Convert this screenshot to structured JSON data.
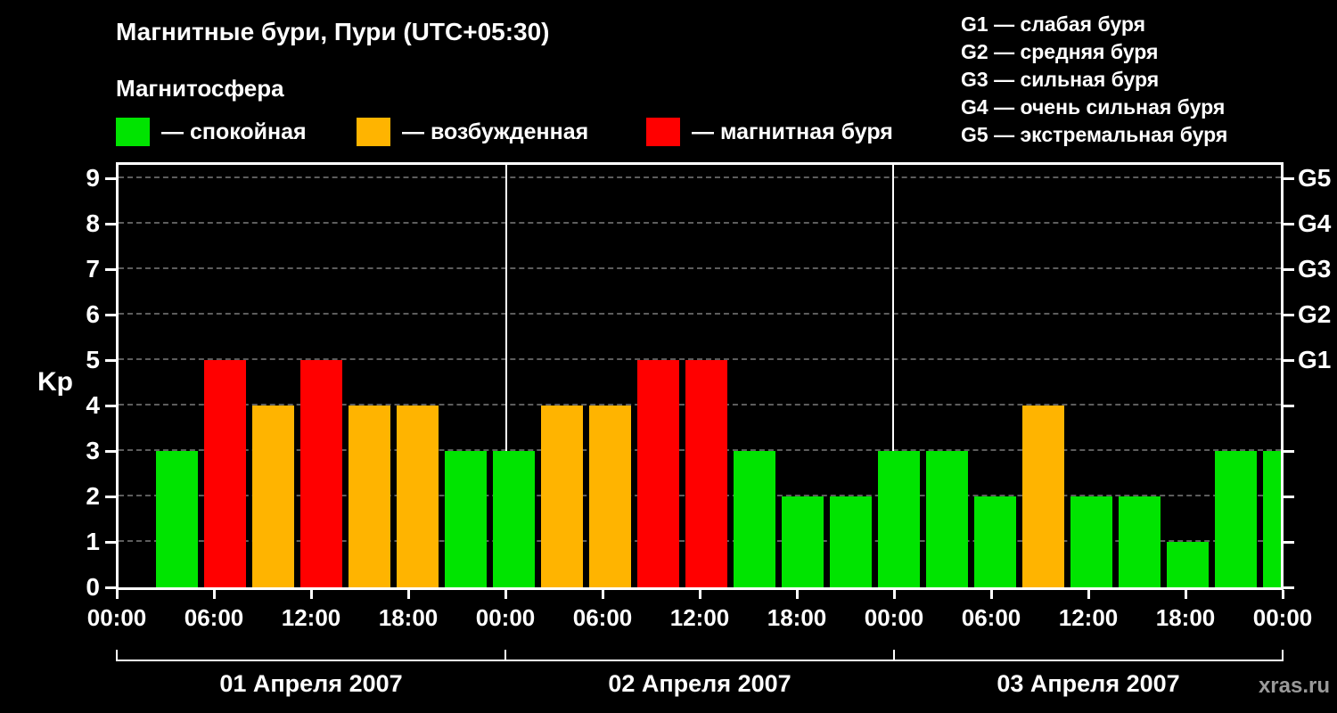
{
  "title": "Магнитные бури, Пури (UTC+05:30)",
  "subtitle": "Магнитосфера",
  "legend": [
    {
      "key": "quiet",
      "label": "— спокойная",
      "color": "#00e400"
    },
    {
      "key": "active",
      "label": "— возбужденная",
      "color": "#ffb400"
    },
    {
      "key": "storm",
      "label": "— магнитная буря",
      "color": "#ff0000"
    }
  ],
  "storm_scale": [
    "G1 — слабая буря",
    "G2 — средняя буря",
    "G3 — сильная буря",
    "G4 — очень сильная буря",
    "G5 — экстремальная буря"
  ],
  "watermark": "xras.ru",
  "chart_data": {
    "type": "bar",
    "title": "Магнитные бури, Пури (UTC+05:30)",
    "ylabel": "Kp",
    "ylim": [
      0,
      9.4
    ],
    "yticks": [
      0,
      1,
      2,
      3,
      4,
      5,
      6,
      7,
      8,
      9
    ],
    "right_axis": [
      {
        "label": "G1",
        "kp": 5
      },
      {
        "label": "G2",
        "kp": 6
      },
      {
        "label": "G3",
        "kp": 7
      },
      {
        "label": "G4",
        "kp": 8
      },
      {
        "label": "G5",
        "kp": 9
      }
    ],
    "x_tick_labels": [
      "00:00",
      "06:00",
      "12:00",
      "18:00",
      "00:00",
      "06:00",
      "12:00",
      "18:00",
      "00:00",
      "06:00",
      "12:00",
      "18:00",
      "00:00"
    ],
    "bar_interval_hours": 3,
    "days": [
      {
        "date": "01 Апреля 2007",
        "values": [
          3,
          5,
          4,
          5,
          4,
          4,
          3,
          3
        ]
      },
      {
        "date": "02 Апреля 2007",
        "values": [
          4,
          4,
          5,
          5,
          3,
          2,
          2,
          3
        ]
      },
      {
        "date": "03 Апреля 2007",
        "values": [
          3,
          2,
          4,
          2,
          2,
          1,
          3,
          3
        ]
      }
    ],
    "color_rule": {
      "quiet_max": 3,
      "active_max": 4
    },
    "colors": {
      "quiet": "#00e400",
      "active": "#ffb400",
      "storm": "#ff0000"
    },
    "grid": "dashed horizontal",
    "background": "#000000",
    "legend_position": "top"
  }
}
